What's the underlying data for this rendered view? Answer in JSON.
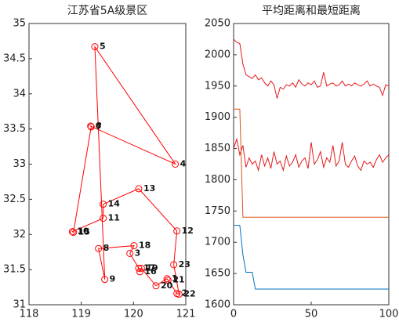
{
  "chart_data": [
    {
      "type": "scatter",
      "title": "江苏省5A级景区",
      "color": "#ff0000",
      "point_labels": [
        "5",
        "4",
        "6",
        "7",
        "15",
        "10",
        "11",
        "14",
        "13",
        "12",
        "23",
        "22",
        "2",
        "21",
        "1",
        "20",
        "19",
        "16",
        "17",
        "3",
        "18",
        "8",
        "9"
      ],
      "x": [
        119.26,
        120.8,
        119.18,
        119.19,
        118.85,
        118.83,
        119.42,
        119.42,
        120.1,
        120.83,
        120.77,
        120.87,
        120.83,
        120.66,
        120.64,
        120.43,
        120.15,
        120.12,
        120.1,
        119.93,
        120.01,
        119.33,
        119.45
      ],
      "y": [
        34.67,
        33.0,
        33.54,
        33.53,
        32.03,
        32.04,
        32.23,
        32.43,
        32.65,
        32.05,
        31.57,
        31.15,
        31.16,
        31.35,
        31.37,
        31.27,
        31.52,
        31.47,
        31.52,
        31.73,
        31.84,
        31.8,
        31.36
      ],
      "xlim": [
        118,
        121
      ],
      "xticks": [
        118,
        119,
        120,
        121
      ],
      "ylim": [
        31,
        35
      ],
      "yticks": [
        31,
        31.5,
        32,
        32.5,
        33,
        33.5,
        34,
        34.5,
        35
      ]
    },
    {
      "type": "line",
      "title": "平均距离和最短距离",
      "x": [
        0,
        2,
        4,
        6,
        8,
        10,
        12,
        14,
        16,
        18,
        20,
        22,
        24,
        26,
        28,
        30,
        32,
        34,
        36,
        38,
        40,
        42,
        44,
        46,
        48,
        50,
        52,
        54,
        56,
        58,
        60,
        62,
        64,
        66,
        68,
        70,
        72,
        74,
        76,
        78,
        80,
        82,
        84,
        86,
        88,
        90,
        92,
        94,
        96,
        98,
        100
      ],
      "series": [
        {
          "color": "#e41a1c",
          "values": [
            2025,
            2020,
            2018,
            1985,
            1968,
            1965,
            1962,
            1968,
            1960,
            1963,
            1955,
            1950,
            1958,
            1952,
            1930,
            1948,
            1945,
            1952,
            1950,
            1955,
            1948,
            1960,
            1953,
            1950,
            1955,
            1952,
            1958,
            1948,
            1950,
            1972,
            1950,
            1953,
            1955,
            1950,
            1952,
            1958,
            1950,
            1953,
            1950,
            1955,
            1952,
            1950,
            1953,
            1958,
            1950,
            1953,
            1950,
            1948,
            1935,
            1952,
            1950
          ]
        },
        {
          "color": "#e41a1c",
          "values": [
            1850,
            1865,
            1840,
            1855,
            1820,
            1835,
            1825,
            1830,
            1815,
            1840,
            1822,
            1835,
            1818,
            1845,
            1825,
            1830,
            1815,
            1838,
            1822,
            1828,
            1840,
            1820,
            1830,
            1835,
            1818,
            1860,
            1825,
            1832,
            1845,
            1820,
            1835,
            1828,
            1855,
            1822,
            1830,
            1860,
            1825,
            1820,
            1830,
            1838,
            1822,
            1815,
            1830,
            1825,
            1828,
            1820,
            1832,
            1840,
            1828,
            1835,
            1840
          ]
        },
        {
          "color": "#d95319",
          "values": [
            1913,
            1913,
            1913,
            1740,
            1740,
            1740,
            1740,
            1740,
            1740,
            1740,
            1740,
            1740,
            1740,
            1740,
            1740,
            1740,
            1740,
            1740,
            1740,
            1740,
            1740,
            1740,
            1740,
            1740,
            1740,
            1740,
            1740,
            1740,
            1740,
            1740,
            1740,
            1740,
            1740,
            1740,
            1740,
            1740,
            1740,
            1740,
            1740,
            1740,
            1740,
            1740,
            1740,
            1740,
            1740,
            1740,
            1740,
            1740,
            1740,
            1740,
            1740
          ]
        },
        {
          "color": "#0072bd",
          "values": [
            1727,
            1727,
            1727,
            1680,
            1652,
            1652,
            1652,
            1625,
            1625,
            1625,
            1625,
            1625,
            1625,
            1625,
            1625,
            1625,
            1625,
            1625,
            1625,
            1625,
            1625,
            1625,
            1625,
            1625,
            1625,
            1625,
            1625,
            1625,
            1625,
            1625,
            1625,
            1625,
            1625,
            1625,
            1625,
            1625,
            1625,
            1625,
            1625,
            1625,
            1625,
            1625,
            1625,
            1625,
            1625,
            1625,
            1625,
            1625,
            1625,
            1625,
            1625
          ]
        }
      ],
      "xlim": [
        0,
        100
      ],
      "xticks": [
        0,
        50,
        100
      ],
      "ylim": [
        1600,
        2050
      ],
      "yticks": [
        1600,
        1650,
        1700,
        1750,
        1800,
        1850,
        1900,
        1950,
        2000,
        2050
      ]
    }
  ]
}
